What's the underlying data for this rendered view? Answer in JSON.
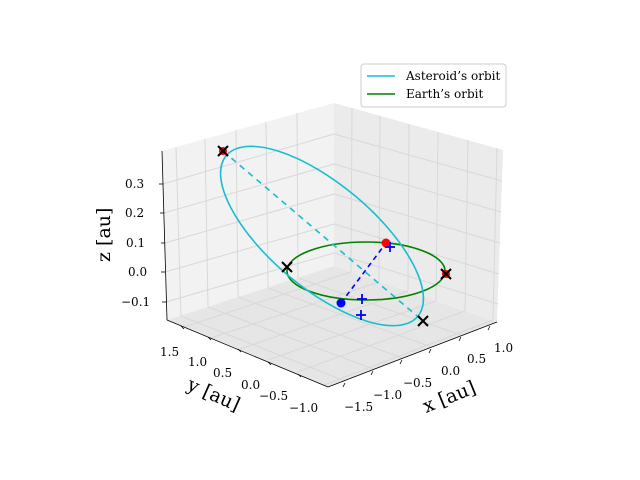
{
  "chart_data": {
    "type": "line3d",
    "title": "",
    "xlabel": "x [au]",
    "ylabel": "y [au]",
    "zlabel": "z [au]",
    "x_ticks": [
      "−1.5",
      "−1.0",
      "−0.5",
      "0.0",
      "0.5",
      "1.0"
    ],
    "y_ticks": [
      "1.5",
      "1.0",
      "0.5",
      "0.0",
      "−0.5",
      "−1.0"
    ],
    "z_ticks": [
      "0.3",
      "0.2",
      "0.1",
      "0.0",
      "−0.1"
    ],
    "xlim": [
      -1.7,
      1.2
    ],
    "ylim": [
      -1.1,
      1.7
    ],
    "zlim": [
      -0.15,
      0.38
    ],
    "grid": true,
    "legend_position": "upper-right",
    "legend": [
      {
        "name": "Asteroid’s orbit",
        "color": "#17becf"
      },
      {
        "name": "Earth’s orbit",
        "color": "#008000"
      }
    ],
    "series": [
      {
        "name": "Asteroid’s orbit",
        "color": "#17becf",
        "style": "solid"
      },
      {
        "name": "Earth’s orbit",
        "color": "#008000",
        "style": "solid"
      }
    ],
    "markers": {
      "x_markers_color": "#000000",
      "red_points_color": "#ff0000",
      "blue_points_color": "#0000ff",
      "asteroid_dashed_color": "#17becf",
      "connector_dashed_color": "#0000ff"
    }
  }
}
